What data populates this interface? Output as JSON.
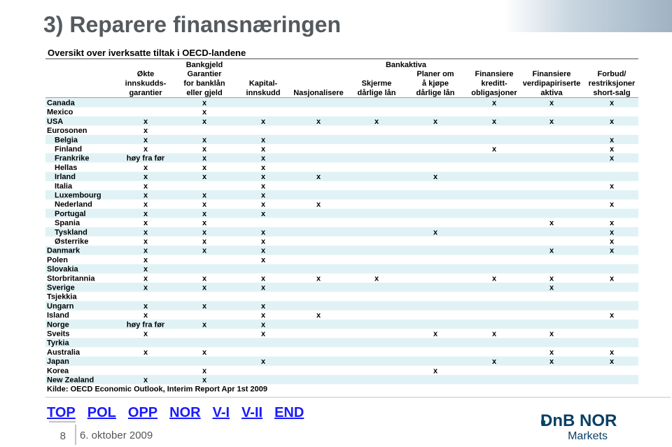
{
  "header": {
    "title": "3) Reparere finansnæringen",
    "subtitle": "Oversikt over iverksatte tiltak i OECD-landene"
  },
  "table": {
    "groups": [
      {
        "label": "Bankgjeld",
        "from": 0,
        "to": 2
      },
      {
        "label": "Bankaktiva",
        "from": 4,
        "to": 5
      }
    ],
    "columns": [
      [
        "Økte",
        "innskudds-",
        "garantier"
      ],
      [
        "Garantier",
        "for banklån",
        "eller gjeld"
      ],
      [
        "Kapital-",
        "innskudd"
      ],
      [
        "Nasjonalisere"
      ],
      [
        "Skjerme",
        "dårlige lån"
      ],
      [
        "Planer om",
        "å kjøpe",
        "dårlige lån"
      ],
      [
        "Finansiere",
        "kreditt-",
        "obligasjoner"
      ],
      [
        "Finansiere",
        "verdipapiriserte",
        "aktiva"
      ],
      [
        "Forbud/",
        "restriksjoner",
        "short-salg"
      ]
    ],
    "rows": [
      {
        "country": "Canada",
        "cells": [
          null,
          "x",
          null,
          null,
          null,
          null,
          "x",
          "x",
          "x"
        ]
      },
      {
        "country": "Mexico",
        "cells": [
          null,
          "x",
          null,
          null,
          null,
          null,
          null,
          null,
          null
        ]
      },
      {
        "country": "USA",
        "cells": [
          "x",
          "x",
          "x",
          "x",
          "x",
          "x",
          "x",
          "x",
          "x"
        ]
      },
      {
        "country": "Eurosonen",
        "cells": [
          "x",
          null,
          null,
          null,
          null,
          null,
          null,
          null,
          null
        ],
        "members": [
          {
            "country": "Belgia",
            "cells": [
              "x",
              "x",
              "x",
              null,
              null,
              null,
              null,
              null,
              "x"
            ]
          },
          {
            "country": "Finland",
            "cells": [
              "x",
              "x",
              "x",
              null,
              null,
              null,
              "x",
              null,
              "x"
            ]
          },
          {
            "country": "Frankrike",
            "cells": [
              "høy fra før",
              "x",
              "x",
              null,
              null,
              null,
              null,
              null,
              "x"
            ]
          },
          {
            "country": "Hellas",
            "cells": [
              "x",
              "x",
              "x",
              null,
              null,
              null,
              null,
              null,
              null
            ]
          },
          {
            "country": "Irland",
            "cells": [
              "x",
              "x",
              "x",
              "x",
              null,
              "x",
              null,
              null,
              null
            ]
          },
          {
            "country": "Italia",
            "cells": [
              "x",
              null,
              "x",
              null,
              null,
              null,
              null,
              null,
              "x"
            ]
          },
          {
            "country": "Luxembourg",
            "cells": [
              "x",
              "x",
              "x",
              null,
              null,
              null,
              null,
              null,
              null
            ]
          },
          {
            "country": "Nederland",
            "cells": [
              "x",
              "x",
              "x",
              "x",
              null,
              null,
              null,
              null,
              "x"
            ]
          },
          {
            "country": "Portugal",
            "cells": [
              "x",
              "x",
              "x",
              null,
              null,
              null,
              null,
              null,
              null
            ]
          },
          {
            "country": "Spania",
            "cells": [
              "x",
              "x",
              null,
              null,
              null,
              null,
              null,
              "x",
              "x"
            ]
          },
          {
            "country": "Tyskland",
            "cells": [
              "x",
              "x",
              "x",
              null,
              null,
              "x",
              null,
              null,
              "x"
            ]
          },
          {
            "country": "Østerrike",
            "cells": [
              "x",
              "x",
              "x",
              null,
              null,
              null,
              null,
              null,
              "x"
            ]
          }
        ]
      },
      {
        "country": "Danmark",
        "cells": [
          "x",
          "x",
          "x",
          null,
          null,
          null,
          null,
          "x",
          "x"
        ]
      },
      {
        "country": "Polen",
        "cells": [
          "x",
          null,
          "x",
          null,
          null,
          null,
          null,
          null,
          null
        ]
      },
      {
        "country": "Slovakia",
        "cells": [
          "x",
          null,
          null,
          null,
          null,
          null,
          null,
          null,
          null
        ]
      },
      {
        "country": "Storbritannia",
        "cells": [
          "x",
          "x",
          "x",
          "x",
          "x",
          null,
          "x",
          "x",
          "x"
        ]
      },
      {
        "country": "Sverige",
        "cells": [
          "x",
          "x",
          "x",
          null,
          null,
          null,
          null,
          "x",
          null
        ]
      },
      {
        "country": "Tsjekkia",
        "cells": [
          null,
          null,
          null,
          null,
          null,
          null,
          null,
          null,
          null
        ]
      },
      {
        "country": "Ungarn",
        "cells": [
          "x",
          "x",
          "x",
          null,
          null,
          null,
          null,
          null,
          null
        ]
      },
      {
        "country": "Island",
        "cells": [
          "x",
          null,
          "x",
          "x",
          null,
          null,
          null,
          null,
          "x"
        ]
      },
      {
        "country": "Norge",
        "cells": [
          "høy fra før",
          "x",
          "x",
          null,
          null,
          null,
          null,
          null,
          null
        ]
      },
      {
        "country": "Sveits",
        "cells": [
          "x",
          null,
          "x",
          null,
          null,
          "x",
          "x",
          "x",
          null
        ]
      },
      {
        "country": "Tyrkia",
        "cells": [
          null,
          null,
          null,
          null,
          null,
          null,
          null,
          null,
          null
        ]
      },
      {
        "country": "Australia",
        "cells": [
          "x",
          "x",
          null,
          null,
          null,
          null,
          null,
          "x",
          "x"
        ]
      },
      {
        "country": "Japan",
        "cells": [
          null,
          null,
          "x",
          null,
          null,
          null,
          "x",
          "x",
          "x"
        ]
      },
      {
        "country": "Korea",
        "cells": [
          null,
          "x",
          null,
          null,
          null,
          "x",
          null,
          null,
          null
        ]
      },
      {
        "country": "New Zealand",
        "cells": [
          "x",
          "x",
          null,
          null,
          null,
          null,
          null,
          null,
          null
        ]
      }
    ],
    "source": "Kilde: OECD Economic Outlook, Interim Report Apr 1st 2009"
  },
  "nav": [
    "TOP",
    "POL",
    "OPP",
    "NOR",
    "V-I",
    "V-II",
    "END"
  ],
  "footer": {
    "page": "8",
    "date": "6. oktober 2009",
    "logo": "DnB NOR",
    "logo_sub": "Markets"
  }
}
